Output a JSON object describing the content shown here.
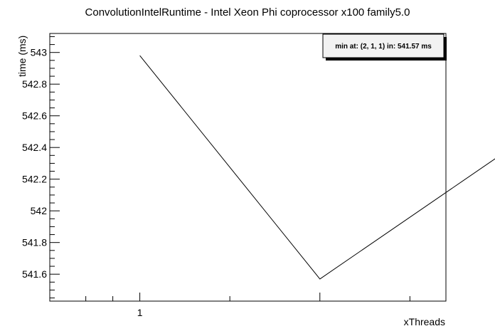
{
  "chart_data": {
    "type": "line",
    "title": "ConvolutionIntelRuntime - Intel Xeon Phi coprocessor x100 family5.0",
    "xlabel": "xThreads",
    "ylabel": "time (ms)",
    "xlim": [
      0.5,
      2.7
    ],
    "ylim": [
      541.43,
      543.12
    ],
    "x_ticks": [
      {
        "value": 1,
        "label": "1"
      }
    ],
    "y_ticks": [
      {
        "value": 541.6,
        "label": "541.6"
      },
      {
        "value": 541.8,
        "label": "541.8"
      },
      {
        "value": 542.0,
        "label": "542"
      },
      {
        "value": 542.2,
        "label": "542.2"
      },
      {
        "value": 542.4,
        "label": "542.4"
      },
      {
        "value": 542.6,
        "label": "542.6"
      },
      {
        "value": 542.8,
        "label": "542.8"
      },
      {
        "value": 543.0,
        "label": "543"
      }
    ],
    "series": [
      {
        "x": [
          1,
          2,
          3
        ],
        "y": [
          542.98,
          541.57,
          542.35
        ],
        "color": "#000000"
      }
    ],
    "legend_text": "min at: (2, 1, 1) in: 541.57 ms",
    "legend_position": "top-right",
    "grid": false
  }
}
